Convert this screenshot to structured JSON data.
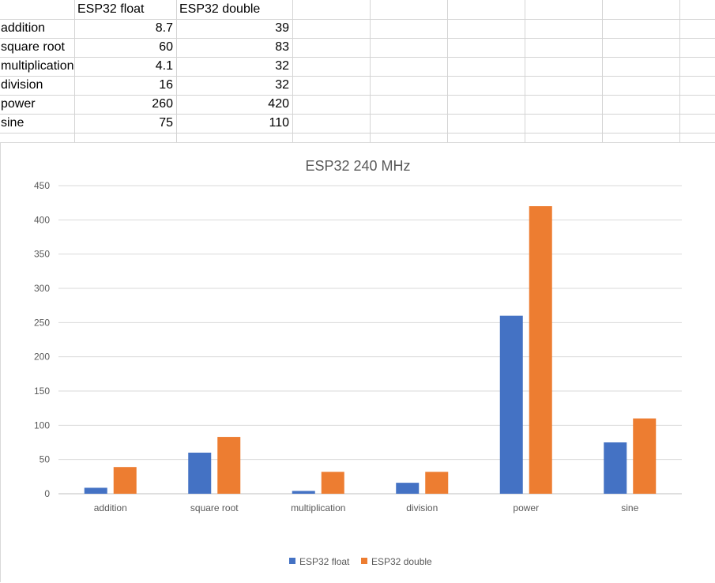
{
  "sheet": {
    "headers": [
      "",
      "ESP32 float",
      "ESP32 double"
    ],
    "rows": [
      {
        "label": "addition",
        "float": "8.7",
        "double": "39"
      },
      {
        "label": "square root",
        "float": "60",
        "double": "83"
      },
      {
        "label": "multiplication",
        "float": "4.1",
        "double": "32"
      },
      {
        "label": "division",
        "float": "16",
        "double": "32"
      },
      {
        "label": "power",
        "float": "260",
        "double": "420"
      },
      {
        "label": "sine",
        "float": "75",
        "double": "110"
      }
    ]
  },
  "chart_data": {
    "type": "bar",
    "title": "ESP32 240 MHz",
    "xlabel": "",
    "ylabel": "",
    "categories": [
      "addition",
      "square root",
      "multiplication",
      "division",
      "power",
      "sine"
    ],
    "series": [
      {
        "name": "ESP32 float",
        "values": [
          8.7,
          60,
          4.1,
          16,
          260,
          75
        ],
        "color": "#4472c4"
      },
      {
        "name": "ESP32 double",
        "values": [
          39,
          83,
          32,
          32,
          420,
          110
        ],
        "color": "#ed7d31"
      }
    ],
    "ylim": [
      0,
      450
    ],
    "yticks": [
      0,
      50,
      100,
      150,
      200,
      250,
      300,
      350,
      400,
      450
    ],
    "grid": true,
    "legend": "bottom"
  }
}
